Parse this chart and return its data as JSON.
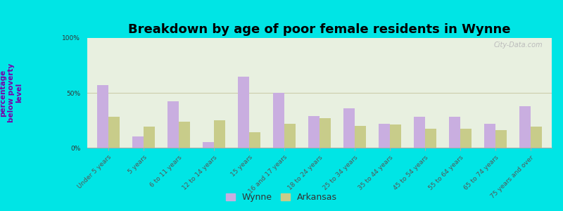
{
  "title": "Breakdown by age of poor female residents in Wynne",
  "ylabel": "percentage\nbelow poverty\nlevel",
  "categories": [
    "Under 5 years",
    "5 years",
    "6 to 11 years",
    "12 to 14 years",
    "15 years",
    "16 and 17 years",
    "18 to 24 years",
    "25 to 34 years",
    "35 to 44 years",
    "45 to 54 years",
    "55 to 64 years",
    "65 to 74 years",
    "75 years and over"
  ],
  "wynne_values": [
    57,
    10,
    42,
    5,
    65,
    50,
    29,
    36,
    22,
    28,
    28,
    22,
    38
  ],
  "arkansas_values": [
    28,
    19,
    24,
    25,
    14,
    22,
    27,
    20,
    21,
    17,
    17,
    16,
    19
  ],
  "wynne_color": "#c9aee0",
  "arkansas_color": "#c8cc8a",
  "background_color": "#00e5e5",
  "plot_bg_color": "#e8f0e0",
  "title_fontsize": 13,
  "ylabel_fontsize": 7.5,
  "tick_fontsize": 6.5,
  "legend_fontsize": 9,
  "ylim": [
    0,
    100
  ],
  "yticks": [
    0,
    50,
    100
  ],
  "ytick_labels": [
    "0%",
    "50%",
    "100%"
  ],
  "legend_labels": [
    "Wynne",
    "Arkansas"
  ],
  "watermark": "City-Data.com"
}
